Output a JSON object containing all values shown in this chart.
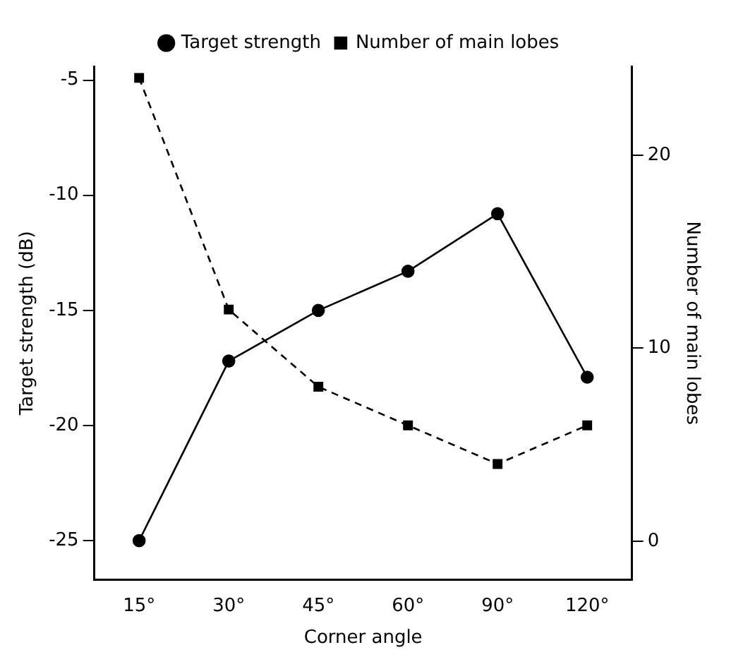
{
  "chart_data": {
    "type": "line",
    "xlabel": "Corner angle",
    "ylabel": "Target strength (dB)",
    "y2label": "Number of main lobes",
    "categories": [
      "15°",
      "30°",
      "45°",
      "60°",
      "90°",
      "120°"
    ],
    "series": [
      {
        "name": "Target strength",
        "color": "#000000",
        "values": [
          -25,
          -17.2,
          -15,
          -13.3,
          -10.8,
          -17.9
        ],
        "marker": "circle",
        "line_style": "solid"
      },
      {
        "name": "Number of main lobes",
        "color": "#000000",
        "values": [
          24,
          12,
          8,
          6,
          4,
          6
        ],
        "axis": "y2",
        "marker": "square",
        "line_style": "dashed"
      }
    ],
    "ylim": [
      -26.7,
      -4.4
    ],
    "yticks": [
      -5,
      -10,
      -15,
      -20,
      -25
    ],
    "y2lim": [
      -2,
      24.6
    ],
    "y2ticks": [
      0,
      10,
      20
    ],
    "grid": false,
    "legend": "top"
  }
}
